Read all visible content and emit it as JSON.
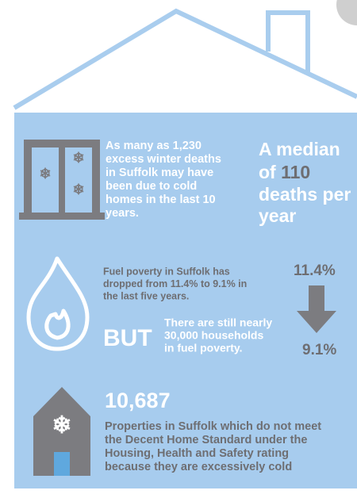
{
  "deaths": {
    "lines": [
      "As many as 1,230",
      "excess winter deaths",
      "in Suffolk may have",
      "been due to cold",
      "homes in the last 10",
      "years."
    ]
  },
  "median": {
    "line1": "A median",
    "of": "of",
    "number": "110",
    "line3": "deaths per",
    "line4": "year"
  },
  "fuel": {
    "lines": [
      "Fuel poverty in Suffolk has",
      "dropped from 11.4% to 9.1% in",
      "the last five years."
    ],
    "from": "11.4%",
    "to": "9.1%",
    "but": "BUT",
    "still_lines": [
      "There are still nearly",
      "30,000 households",
      "in  fuel poverty."
    ]
  },
  "properties": {
    "number": "10,687",
    "lines": [
      "Properties in Suffolk which do not meet",
      "the Decent Home Standard under the",
      "Housing, Health and Safety rating",
      "because they are excessively cold"
    ]
  }
}
